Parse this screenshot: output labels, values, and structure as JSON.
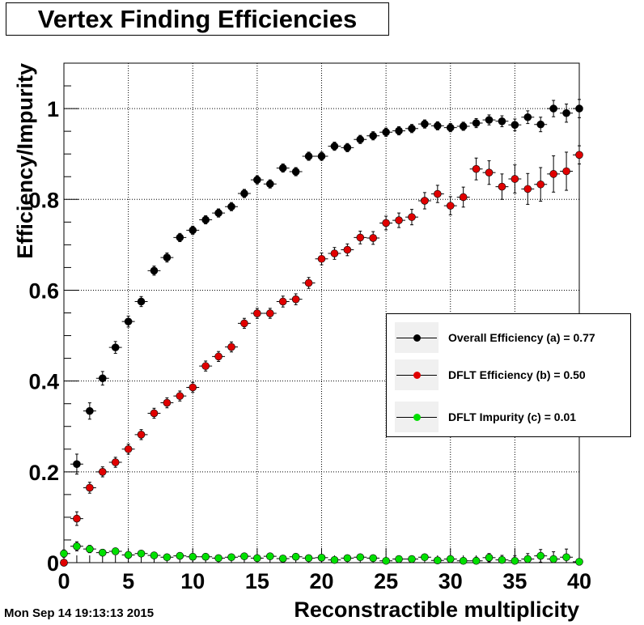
{
  "title": "Vertex Finding Efficiencies",
  "timestamp": "Mon Sep 14 19:13:13 2015",
  "colors": {
    "overall": "#000000",
    "dflt_eff": "#e00000",
    "dflt_imp": "#00e000"
  },
  "chart_data": {
    "type": "scatter",
    "xlabel": "Reconstractible multiplicity",
    "ylabel": "Efficiency/Impurity",
    "xlim": [
      0,
      40
    ],
    "ylim": [
      0,
      1.1
    ],
    "grid": true,
    "legend_position": "right",
    "x_ticks": [
      "0",
      "5",
      "10",
      "15",
      "20",
      "25",
      "30",
      "35",
      "40"
    ],
    "y_ticks": [
      "0",
      "0.2",
      "0.4",
      "0.6",
      "0.8",
      "1"
    ],
    "x": [
      0,
      1,
      2,
      3,
      4,
      5,
      6,
      7,
      8,
      9,
      10,
      11,
      12,
      13,
      14,
      15,
      16,
      17,
      18,
      19,
      20,
      21,
      22,
      23,
      24,
      25,
      26,
      27,
      28,
      29,
      30,
      31,
      32,
      33,
      34,
      35,
      36,
      37,
      38,
      39,
      40
    ],
    "series": [
      {
        "name": "Overall Efficiency (a) = 0.77",
        "color": "#000000",
        "values": [
          0.0,
          0.217,
          0.334,
          0.406,
          0.474,
          0.531,
          0.575,
          0.643,
          0.672,
          0.716,
          0.732,
          0.755,
          0.77,
          0.784,
          0.813,
          0.843,
          0.834,
          0.869,
          0.861,
          0.895,
          0.895,
          0.917,
          0.914,
          0.932,
          0.94,
          0.948,
          0.951,
          0.956,
          0.966,
          0.962,
          0.958,
          0.961,
          0.968,
          0.975,
          0.972,
          0.964,
          0.981,
          0.965,
          1.0,
          0.99,
          1.0
        ],
        "errors": [
          0.0,
          0.022,
          0.018,
          0.015,
          0.013,
          0.012,
          0.011,
          0.01,
          0.01,
          0.009,
          0.009,
          0.009,
          0.009,
          0.009,
          0.009,
          0.009,
          0.009,
          0.009,
          0.009,
          0.009,
          0.009,
          0.009,
          0.009,
          0.009,
          0.009,
          0.009,
          0.009,
          0.009,
          0.009,
          0.009,
          0.009,
          0.009,
          0.01,
          0.011,
          0.012,
          0.013,
          0.014,
          0.016,
          0.018,
          0.02,
          0.02
        ]
      },
      {
        "name": "DFLT Efficiency (b) = 0.50",
        "color": "#e00000",
        "values": [
          0.0,
          0.097,
          0.165,
          0.2,
          0.221,
          0.25,
          0.282,
          0.329,
          0.352,
          0.367,
          0.386,
          0.433,
          0.454,
          0.475,
          0.527,
          0.549,
          0.549,
          0.575,
          0.58,
          0.616,
          0.669,
          0.681,
          0.689,
          0.716,
          0.715,
          0.748,
          0.754,
          0.761,
          0.797,
          0.812,
          0.786,
          0.805,
          0.867,
          0.859,
          0.828,
          0.845,
          0.823,
          0.833,
          0.856,
          0.862,
          0.898
        ],
        "errors": [
          0.0,
          0.015,
          0.012,
          0.011,
          0.011,
          0.011,
          0.011,
          0.011,
          0.011,
          0.011,
          0.011,
          0.011,
          0.011,
          0.011,
          0.011,
          0.011,
          0.011,
          0.012,
          0.012,
          0.012,
          0.013,
          0.013,
          0.013,
          0.014,
          0.014,
          0.015,
          0.016,
          0.017,
          0.018,
          0.019,
          0.02,
          0.022,
          0.024,
          0.026,
          0.028,
          0.031,
          0.034,
          0.037,
          0.04,
          0.042,
          0.02
        ]
      },
      {
        "name": "DFLT Impurity (c) = 0.01",
        "color": "#00e000",
        "values": [
          0.02,
          0.036,
          0.03,
          0.022,
          0.025,
          0.017,
          0.02,
          0.016,
          0.012,
          0.015,
          0.013,
          0.013,
          0.01,
          0.012,
          0.014,
          0.01,
          0.014,
          0.009,
          0.013,
          0.01,
          0.011,
          0.006,
          0.01,
          0.012,
          0.01,
          0.004,
          0.008,
          0.008,
          0.012,
          0.005,
          0.008,
          0.004,
          0.004,
          0.011,
          0.006,
          0.004,
          0.008,
          0.015,
          0.008,
          0.012,
          0.002
        ],
        "errors": [
          0.008,
          0.01,
          0.008,
          0.007,
          0.007,
          0.006,
          0.006,
          0.006,
          0.005,
          0.005,
          0.005,
          0.005,
          0.005,
          0.005,
          0.005,
          0.005,
          0.005,
          0.005,
          0.005,
          0.005,
          0.005,
          0.005,
          0.005,
          0.005,
          0.005,
          0.005,
          0.006,
          0.006,
          0.006,
          0.006,
          0.007,
          0.007,
          0.008,
          0.009,
          0.01,
          0.011,
          0.012,
          0.014,
          0.016,
          0.018,
          0.004
        ]
      }
    ]
  }
}
